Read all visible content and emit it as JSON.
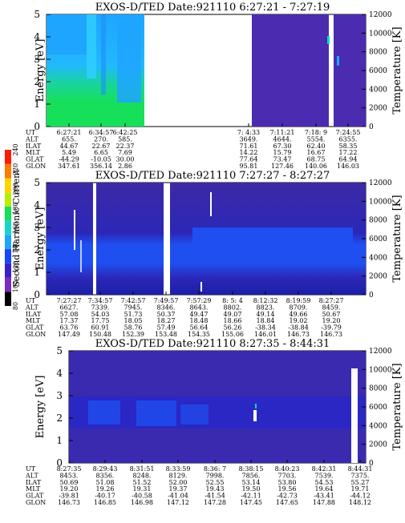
{
  "chart_data": [
    {
      "type": "heatmap",
      "title": "EXOS-D/TED   Date:921110  6:27:21 - 7:27:19",
      "ylabel": "Energy [eV]",
      "y2label": "Temperature [K]",
      "ylim": [
        0,
        5
      ],
      "y2lim": [
        0,
        12000
      ],
      "yticks": [
        "0",
        "1",
        "2",
        "3",
        "4",
        "5"
      ],
      "y2ticks": [
        "0",
        "2000",
        "4000",
        "6000",
        "8000",
        "10000",
        "12000"
      ],
      "row_labels": [
        "UT",
        "ALT",
        "ILAT",
        "MLT",
        "GLAT",
        "GLON"
      ],
      "columns": [
        [
          "6:27:21",
          "655.",
          "44.67",
          "5.49",
          "-44.29",
          "347.61"
        ],
        [
          "6:34:57",
          "270.",
          "22.67",
          "6.65",
          "-10.05",
          "356.14"
        ],
        [
          "6:42:25",
          "585.",
          "22.37",
          "7.69",
          "30.00",
          "2.86"
        ],
        [
          "7:  4:33",
          "3649.",
          "71.61",
          "14.22",
          "77.64",
          "95.81"
        ],
        [
          "7:11:21",
          "4644.",
          "67.30",
          "15.79",
          "73.47",
          "127.46"
        ],
        [
          "7:18:  9",
          "5554.",
          "62.40",
          "16.67",
          "68.75",
          "140.06"
        ],
        [
          "7:24:55",
          "6355.",
          "58.35",
          "17.22",
          "64.94",
          "146.03"
        ]
      ]
    },
    {
      "type": "heatmap",
      "title": "EXOS-D/TED   Date:921110  7:27:27 - 8:27:27",
      "ylabel": "Energy [eV]",
      "y2label": "Temperature [K]",
      "ylim": [
        0,
        5
      ],
      "y2lim": [
        0,
        12000
      ],
      "yticks": [
        "0",
        "1",
        "2",
        "3",
        "4",
        "5"
      ],
      "y2ticks": [
        "0",
        "2000",
        "4000",
        "6000",
        "8000",
        "10000",
        "12000"
      ],
      "row_labels": [
        "UT",
        "ALT",
        "ILAT",
        "MLT",
        "GLAT",
        "GLON"
      ],
      "columns": [
        [
          "7:27:27",
          "6627.",
          "57.08",
          "17.37",
          "63.76",
          "147.49"
        ],
        [
          "7:34:57",
          "7339.",
          "54.03",
          "17.75",
          "60.91",
          "150.48"
        ],
        [
          "7:42:57",
          "7945.",
          "51.73",
          "18.05",
          "58.76",
          "152.39"
        ],
        [
          "7:49:57",
          "8346.",
          "50.37",
          "18.27",
          "57.49",
          "153.48"
        ],
        [
          "7:57:29",
          "8643.",
          "49.47",
          "18.48",
          "56.64",
          "154.35"
        ],
        [
          "8:  5:  4",
          "8802.",
          "49.07",
          "18.66",
          "56.26",
          "155.06"
        ],
        [
          "8:12:32",
          "8823.",
          "49.14",
          "18.84",
          "-38.34",
          "146.01"
        ],
        [
          "8:19:59",
          "8709.",
          "49.66",
          "19.02",
          "-38.84",
          "146.73"
        ],
        [
          "8:27:27",
          "8459.",
          "50.67",
          "19.20",
          "-39.79",
          "146.73"
        ]
      ]
    },
    {
      "type": "heatmap",
      "title": "EXOS-D/TED   Date:921110  8:27:35 - 8:44:31",
      "ylabel": "Energy [eV]",
      "y2label": "Temperature [K]",
      "ylim": [
        0,
        5
      ],
      "y2lim": [
        0,
        12000
      ],
      "yticks": [
        "0",
        "1",
        "2",
        "3",
        "4",
        "5"
      ],
      "y2ticks": [
        "0",
        "2000",
        "4000",
        "6000",
        "8000",
        "10000",
        "12000"
      ],
      "row_labels": [
        "UT",
        "ALT",
        "ILAT",
        "MLT",
        "GLAT",
        "GLON"
      ],
      "columns": [
        [
          "8:27:35",
          "8453.",
          "50.69",
          "19.20",
          "-39.81",
          "146.73"
        ],
        [
          "8:29:43",
          "8356.",
          "51.08",
          "19.26",
          "-40.17",
          "146.85"
        ],
        [
          "8:31:51",
          "8248.",
          "51.52",
          "19.31",
          "-40.58",
          "146.98"
        ],
        [
          "8:33:59",
          "8129.",
          "52.00",
          "19.37",
          "-41.04",
          "147.12"
        ],
        [
          "8:36:  7",
          "7998.",
          "52.55",
          "19.43",
          "-41.54",
          "147.28"
        ],
        [
          "8:38:15",
          "7856.",
          "53.14",
          "19.50",
          "-42.11",
          "147.45"
        ],
        [
          "8:40:23",
          "7703.",
          "53.80",
          "19.56",
          "-42.73",
          "147.65"
        ],
        [
          "8:42:31",
          "7539.",
          "54.53",
          "19.64",
          "-43.41",
          "147.88"
        ],
        [
          "8:44:31",
          "7375.",
          "55.27",
          "19.71",
          "-44.12",
          "148.12"
        ]
      ]
    }
  ],
  "colorbar": {
    "label": "Second Harmonic Current",
    "ticks": [
      "80",
      "100",
      "120",
      "140",
      "160",
      "180",
      "200",
      "220",
      "240"
    ],
    "colors": [
      "#000000",
      "#7b2cbf",
      "#3a1fd0",
      "#1646ff",
      "#1ea5ff",
      "#14d6c8",
      "#16e05a",
      "#b6f000",
      "#ffd400",
      "#ff7a00",
      "#ff1a00"
    ]
  }
}
